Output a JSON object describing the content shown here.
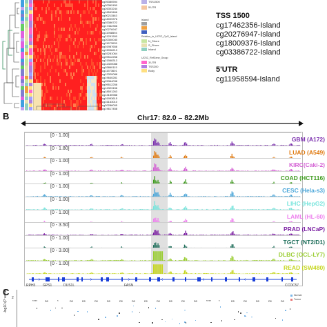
{
  "panel_b_label": "B",
  "panel_c_label": "C",
  "cpg_tss1500_header": "TSS 1500",
  "cpg_tss1500": [
    "cg17462356-Island",
    "cg20276947-Island",
    "cg18009376-Island",
    "cg03386722-Island"
  ],
  "cpg_5utr_header": "5'UTR",
  "cpg_5utr": [
    "cg11958594-Island"
  ],
  "region_label": "Chr17: 82.0 – 82.2Mb",
  "heatmap_row_labels": [
    "cg05380594",
    "cg20362450",
    "cg26303244",
    "cg16543466",
    "cg00211563",
    "cg18009376",
    "cg03386722",
    "cg17462356",
    "cg20276947",
    "cg11958594",
    "cg21291500",
    "cg20300040",
    "cg11573035",
    "cg01987658",
    "cg15006213",
    "cg03281064",
    "cg09512258",
    "cg21568313",
    "cg12320088",
    "cg03860115",
    "cg11573601",
    "cg12320088",
    "cg19640281",
    "cg25364038",
    "cg09512258",
    "cg12323156",
    "cg18501263",
    "cg13150988",
    "cg01993615",
    "cg16163010",
    "cg20286005",
    "cg19617458"
  ],
  "legend_labels": [
    "TSS1500",
    "5'UTR",
    "island",
    "Relation_to_UCSC_CpG_Island",
    "N_Shore",
    "S_Shore",
    "Island",
    "UCSC_RefGene_Group",
    "3'UTR",
    "TSS200",
    "Body"
  ],
  "tracks": [
    {
      "range": "[0 - 1.00]",
      "name": "GBM (A172)",
      "color": "#7b2fae"
    },
    {
      "range": "[0 - 1.80]",
      "name": "LUAD (A549)",
      "color": "#e07b12"
    },
    {
      "range": "[0 - 1.00]",
      "name": "KIRC(Caki-2)",
      "color": "#d35fd3"
    },
    {
      "range": "[0 - 1.00]",
      "name": "COAD (HCT116)",
      "color": "#3f9b1f"
    },
    {
      "range": "[0 - 1.00]",
      "name": "CESC (Hela-s3)",
      "color": "#4aa6d9"
    },
    {
      "range": "[0 - 1.00]",
      "name": "LIHC (HepG2)",
      "color": "#76e4dc"
    },
    {
      "range": "[0 - 1.00]",
      "name": "LAML (HL-60)",
      "color": "#ee82ee"
    },
    {
      "range": "[0 - 3.50]",
      "name": "PRAD (LNCaP)",
      "color": "#7b1fa2"
    },
    {
      "range": "[0 - 1.00]",
      "name": "TGCT (NT2/D1)",
      "color": "#1e6e5a"
    },
    {
      "range": "[0 - 3.00]",
      "name": "DLBC (OCL-LY7)",
      "color": "#9acd32"
    },
    {
      "range": "[0 - 1.00]",
      "name": "READ (SW480)",
      "color": "#c6d620"
    }
  ],
  "genes": [
    "RPH3",
    "GPS1",
    "DUS1L",
    "FASN",
    "CCDC57"
  ],
  "panel_c": {
    "y_label": "-log10 (P value)",
    "y_tick": "2",
    "sig_marks": [
      "****",
      "ns",
      "*",
      "ns",
      "ns",
      "ns",
      "ns",
      "ns",
      "ns",
      "ns",
      "ns",
      "ns",
      "ns",
      "ns",
      "****",
      "*",
      "ns",
      "ns",
      "ns",
      "ns",
      "ns"
    ],
    "legend": [
      "Normal",
      "Tumor"
    ]
  }
}
